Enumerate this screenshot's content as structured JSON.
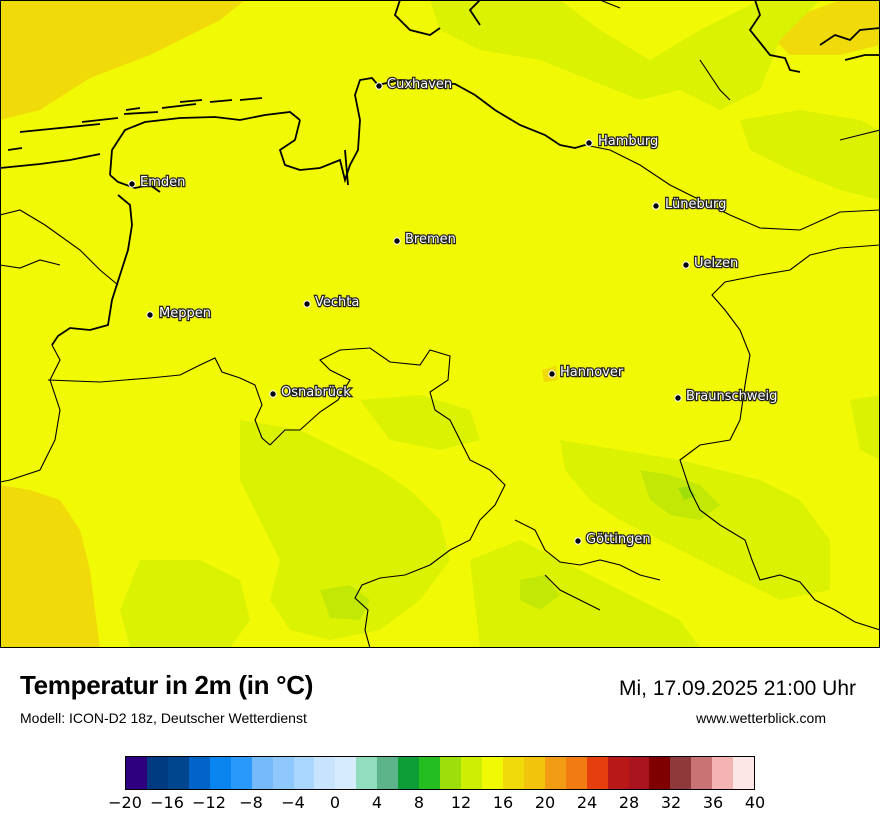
{
  "title": "Temperatur in 2m (in °C)",
  "subtitle": "Modell: ICON-D2 18z, Deutscher Wetterdienst",
  "datetime": "Mi, 17.09.2025 21:00 Uhr",
  "website": "www.wetterblick.com",
  "cities": [
    {
      "name": "Cuxhaven"
    },
    {
      "name": "Hamburg"
    },
    {
      "name": "Emden"
    },
    {
      "name": "Lüneburg"
    },
    {
      "name": "Bremen"
    },
    {
      "name": "Uelzen"
    },
    {
      "name": "Vechta"
    },
    {
      "name": "Meppen"
    },
    {
      "name": "Hannover"
    },
    {
      "name": "Osnabrück"
    },
    {
      "name": "Braunschweig"
    },
    {
      "name": "Göttingen"
    }
  ],
  "legend": {
    "colors": [
      "#2e007f",
      "#003a80",
      "#00468f",
      "#0064c8",
      "#0a84ee",
      "#2a9afa",
      "#76bafc",
      "#8ec8fc",
      "#a8d6fc",
      "#c8e4fc",
      "#d6ecfc",
      "#92dcc0",
      "#5eb48a",
      "#0e9e38",
      "#24be20",
      "#9ede0a",
      "#cdef04",
      "#f2f904",
      "#f0da0a",
      "#f2c40c",
      "#f29c14",
      "#f27c12",
      "#e63e0c",
      "#b81818",
      "#aa141e",
      "#7e0000",
      "#8e3a3a",
      "#c87474",
      "#f4b4b4",
      "#fce6e6"
    ],
    "ticks": [
      "−20",
      "−16",
      "−12",
      "−8",
      "−4",
      "0",
      "4",
      "8",
      "12",
      "16",
      "20",
      "24",
      "28",
      "32",
      "36",
      "40"
    ]
  }
}
